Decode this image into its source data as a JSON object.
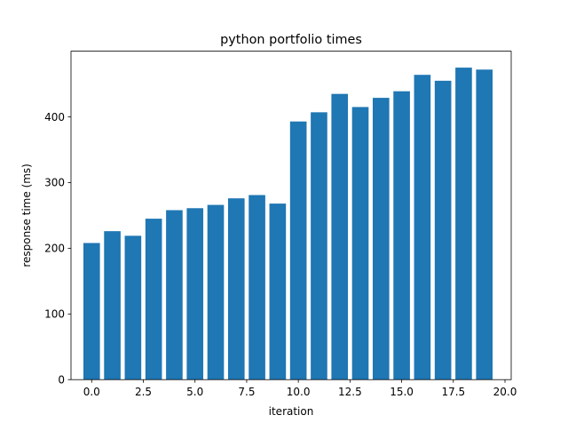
{
  "chart_data": {
    "type": "bar",
    "title": "python portfolio times",
    "xlabel": "iteration",
    "ylabel": "response time (ms)",
    "x": [
      0,
      1,
      2,
      3,
      4,
      5,
      6,
      7,
      8,
      9,
      10,
      11,
      12,
      13,
      14,
      15,
      16,
      17,
      18,
      19
    ],
    "values": [
      208,
      226,
      219,
      245,
      258,
      261,
      266,
      276,
      281,
      268,
      393,
      407,
      435,
      415,
      429,
      439,
      464,
      455,
      475,
      472
    ],
    "xlim": [
      -1.0,
      20.3
    ],
    "ylim": [
      0,
      500
    ],
    "xticks": [
      0.0,
      2.5,
      5.0,
      7.5,
      10.0,
      12.5,
      15.0,
      17.5,
      20.0
    ],
    "xtick_labels": [
      "0.0",
      "2.5",
      "5.0",
      "7.5",
      "10.0",
      "12.5",
      "15.0",
      "17.5",
      "20.0"
    ],
    "yticks": [
      0,
      100,
      200,
      300,
      400
    ],
    "ytick_labels": [
      "0",
      "100",
      "200",
      "300",
      "400"
    ],
    "bar_color": "#1f77b4",
    "grid": false,
    "legend": "none"
  }
}
